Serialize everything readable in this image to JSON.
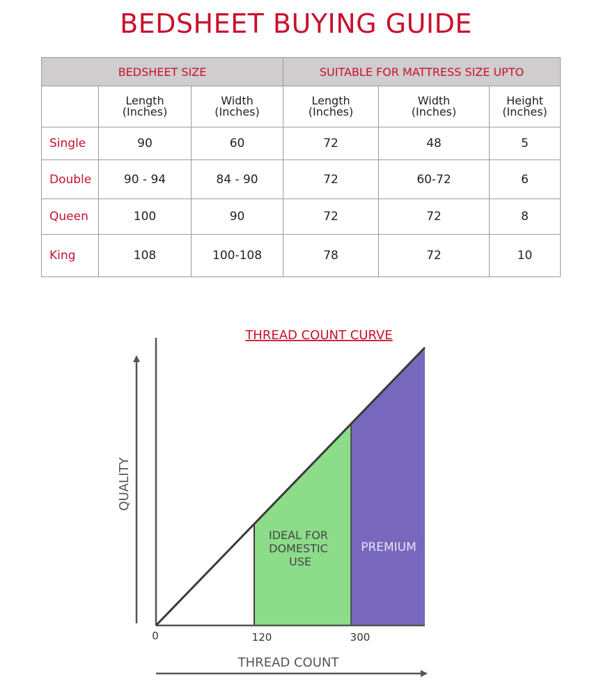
{
  "title": "BEDSHEET BUYING GUIDE",
  "table": {
    "group_headers": [
      "BEDSHEET SIZE",
      "SUITABLE FOR MATTRESS SIZE UPTO"
    ],
    "sub_headers": [
      [
        "Length",
        "(Inches)"
      ],
      [
        "Width",
        "(Inches)"
      ],
      [
        "Length",
        "(Inches)"
      ],
      [
        "Width",
        "(Inches)"
      ],
      [
        "Height",
        "(Inches)"
      ]
    ],
    "rows": [
      {
        "label": "Single",
        "values": [
          "90",
          "60",
          "72",
          "48",
          "5"
        ]
      },
      {
        "label": "Double",
        "values": [
          "90 - 94",
          "84 - 90",
          "72",
          "60-72",
          "6"
        ]
      },
      {
        "label": "Queen",
        "values": [
          "100",
          "90",
          "72",
          "72",
          "8"
        ]
      },
      {
        "label": "King",
        "values": [
          "108",
          "100-108",
          "78",
          "72",
          "10"
        ]
      }
    ]
  },
  "chart_data": {
    "type": "area",
    "title": "THREAD COUNT CURVE",
    "xlabel": "THREAD COUNT",
    "ylabel": "QUALITY",
    "x_ticks": [
      "0",
      "120",
      "300"
    ],
    "regions": [
      {
        "label": "IDEAL FOR DOMESTIC USE",
        "x_start": 120,
        "x_end": 300,
        "color": "#8ddc8a"
      },
      {
        "label": "PREMIUM",
        "x_start": 300,
        "x_end": 380,
        "color": "#7768bd"
      }
    ],
    "axis_color": "#555555",
    "title_color": "#c8102e"
  }
}
